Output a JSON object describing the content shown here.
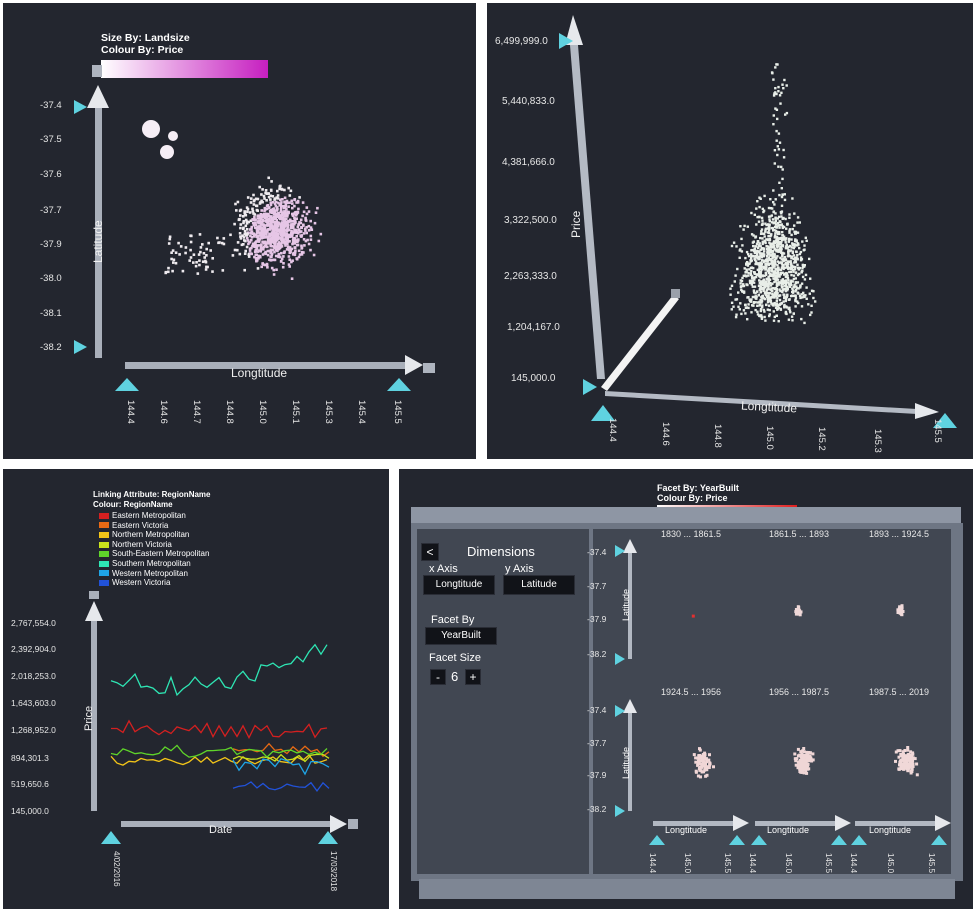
{
  "colors": {
    "bg": "#23262f",
    "axis": "#b9bfc9",
    "handle": "#5fd2e0",
    "point": "#f2ecf0",
    "pink": "#d23fc8",
    "red": "#e12d2d"
  },
  "panel1": {
    "size_by": "Size By: Landsize",
    "colour_by": "Colour By: Price",
    "y_axis_label": "Latitude",
    "x_axis_label": "Longtitude",
    "y_ticks": [
      "-37.4",
      "-37.5",
      "-37.6",
      "-37.7",
      "-37.9",
      "-38.0",
      "-38.1",
      "-38.2"
    ],
    "x_ticks": [
      "144.4",
      "144.6",
      "144.7",
      "144.8",
      "145.0",
      "145.1",
      "145.3",
      "145.4",
      "145.5"
    ]
  },
  "panel2": {
    "y_axis_label": "Price",
    "x_axis_label": "Longtitude",
    "y_ticks": [
      "6,499,999.0",
      "5,440,833.0",
      "4,381,666.0",
      "3,322,500.0",
      "2,263,333.0",
      "1,204,167.0",
      "145,000.0"
    ],
    "x_ticks": [
      "144.4",
      "144.6",
      "144.8",
      "145.0",
      "145.2",
      "145.3",
      "145.5"
    ]
  },
  "panel3": {
    "linking": "Linking Attribute: RegionName",
    "colour": "Colour: RegionName",
    "legend": [
      {
        "name": "Eastern Metropolitan",
        "color": "#d42020"
      },
      {
        "name": "Eastern Victoria",
        "color": "#e86a14"
      },
      {
        "name": "Northern Metropolitan",
        "color": "#f2c418"
      },
      {
        "name": "Northern Victoria",
        "color": "#c9e21c"
      },
      {
        "name": "South-Eastern Metropolitan",
        "color": "#5fd42a"
      },
      {
        "name": "Southern Metropolitan",
        "color": "#2ee6b4"
      },
      {
        "name": "Western Metropolitan",
        "color": "#1fa4e6"
      },
      {
        "name": "Western Victoria",
        "color": "#2152d8"
      }
    ],
    "y_axis_label": "Price",
    "x_axis_label": "Date",
    "y_ticks": [
      "2,767,554.0",
      "2,392,904.0",
      "2,018,253.0",
      "1,643,603.0",
      "1,268,952.0",
      "894,301.3",
      "519,650.6",
      "145,000.0"
    ],
    "x_start": "4/02/2016",
    "x_end": "17/03/2018"
  },
  "panel4": {
    "facet_by": "Facet By: YearBuilt",
    "colour_by": "Colour By: Price",
    "back_label": "<",
    "dimensions_title": "Dimensions",
    "x_axis_title": "x Axis",
    "y_axis_title": "y Axis",
    "x_axis_value": "Longtitude",
    "y_axis_value": "Latitude",
    "facet_by_label": "Facet By",
    "facet_by_value": "YearBuilt",
    "facet_size_label": "Facet Size",
    "facet_size_minus": "-",
    "facet_size_value": "6",
    "facet_size_plus": "+",
    "facets_top": [
      "1830 ... 1861.5",
      "1861.5 ... 1893",
      "1893 ... 1924.5"
    ],
    "facets_bottom": [
      "1924.5 ... 1956",
      "1956 ... 1987.5",
      "1987.5 ... 2019"
    ],
    "lat_label": "Latitude",
    "lon_label": "Longtitude",
    "lat_ticks": [
      "-37.4",
      "-37.7",
      "-37.9",
      "-38.2"
    ],
    "lon_ticks": [
      "144.4",
      "145.0",
      "145.5"
    ]
  }
}
